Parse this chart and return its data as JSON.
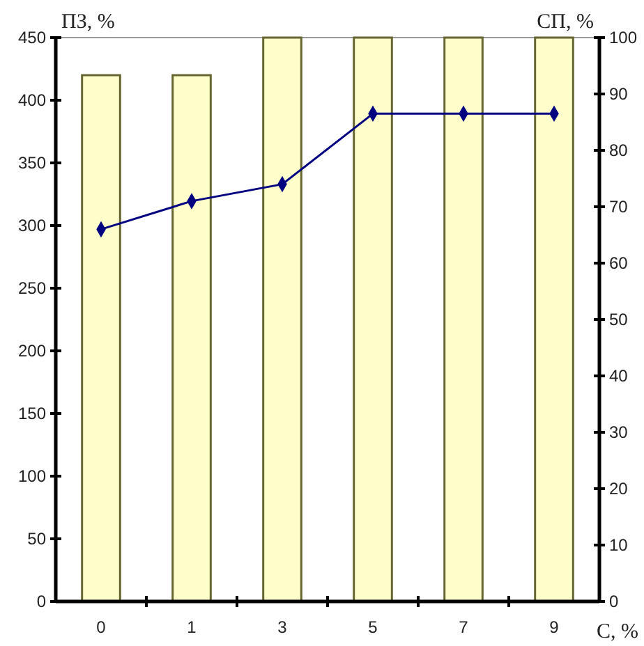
{
  "chart_data": {
    "type": "bar",
    "ylabel": "ПЗ, %",
    "y2label": "СП, %",
    "xlabel": "С, %",
    "categories": [
      "0",
      "1",
      "3",
      "5",
      "7",
      "9"
    ],
    "series": [
      {
        "color": "#ffffcc",
        "values": [
          420,
          420,
          450,
          450,
          450,
          450
        ]
      },
      {
        "type": "line",
        "axis": "y2",
        "color": "#000080",
        "values": [
          66,
          71,
          74,
          86.5,
          86.5,
          86.5
        ]
      }
    ],
    "ylim": [
      0,
      450
    ],
    "yticks": [
      0,
      50,
      100,
      150,
      200,
      250,
      300,
      350,
      400,
      450
    ],
    "y2lim": [
      0,
      100
    ],
    "y2ticks": [
      0,
      10,
      20,
      30,
      40,
      50,
      60,
      70,
      80,
      90,
      100
    ],
    "marker": "diamond",
    "line_style": "solid",
    "grid": false
  }
}
